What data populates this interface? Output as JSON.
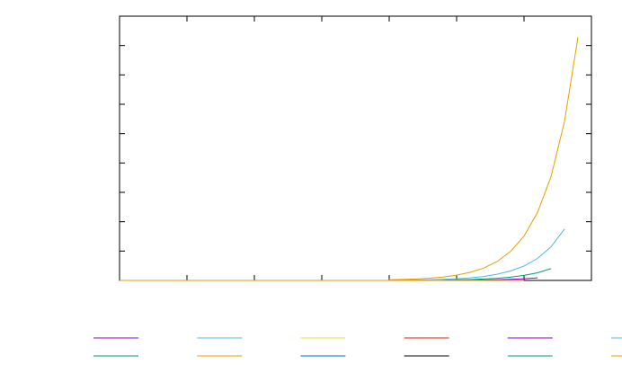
{
  "chart_data": {
    "type": "line",
    "xlim": [
      0,
      7
    ],
    "xticks": [
      0,
      1,
      2,
      3,
      4,
      5,
      6,
      7
    ],
    "ylim": [
      0,
      9
    ],
    "yticks": [
      0,
      1,
      2,
      3,
      4,
      5,
      6,
      7,
      8,
      9
    ],
    "legend_position": "bottom",
    "series": [
      {
        "color": "#9400d3",
        "x": [
          4.8,
          5.0,
          5.2,
          5.4,
          5.6,
          5.8,
          6.0,
          6.2
        ],
        "values": [
          0.005,
          0.007,
          0.011,
          0.016,
          0.025,
          0.038,
          0.059,
          0.09
        ]
      },
      {
        "color": "#009e73",
        "x": [
          4.2,
          4.4,
          4.6,
          4.8,
          5.0,
          5.2,
          5.4,
          5.6,
          5.8,
          6.0,
          6.2,
          6.4
        ],
        "values": [
          0.004,
          0.006,
          0.009,
          0.013,
          0.02,
          0.031,
          0.048,
          0.073,
          0.11,
          0.17,
          0.26,
          0.4
        ]
      },
      {
        "color": "#56b4e9",
        "x": [
          4.0,
          4.2,
          4.4,
          4.6,
          4.8,
          5.0,
          5.2,
          5.4,
          5.6,
          5.8,
          6.0,
          6.2,
          6.4,
          6.6
        ],
        "values": [
          0.007,
          0.01,
          0.016,
          0.025,
          0.038,
          0.058,
          0.089,
          0.136,
          0.21,
          0.32,
          0.49,
          0.75,
          1.14,
          1.75
        ]
      },
      {
        "color": "#e69f00",
        "x": [
          4.0,
          4.2,
          4.4,
          4.6,
          4.8,
          5.0,
          5.2,
          5.4,
          5.6,
          5.8,
          6.0,
          6.2,
          6.4,
          6.6,
          6.8
        ],
        "values": [
          0.021,
          0.033,
          0.05,
          0.077,
          0.117,
          0.18,
          0.275,
          0.42,
          0.644,
          0.985,
          1.51,
          2.31,
          3.53,
          5.41,
          8.28
        ]
      },
      {
        "color": "#f0e442",
        "x": [
          0,
          2,
          4,
          6
        ],
        "values": [
          0,
          0,
          0.001,
          0.003
        ]
      },
      {
        "color": "#0072b2",
        "x": [
          0,
          2,
          4,
          6
        ],
        "values": [
          0,
          0,
          0.001,
          0.003
        ]
      },
      {
        "color": "#e51e10",
        "x": [
          0,
          2,
          4,
          6
        ],
        "values": [
          0,
          0,
          0.001,
          0.002
        ]
      },
      {
        "color": "#000000",
        "x": [
          0,
          2,
          4,
          6
        ],
        "values": [
          0,
          0,
          0.001,
          0.002
        ]
      },
      {
        "color": "#9400d3",
        "x": [
          0,
          2,
          4,
          6
        ],
        "values": [
          0,
          0,
          0,
          0.001
        ]
      },
      {
        "color": "#009e73",
        "x": [
          0,
          2,
          4,
          6
        ],
        "values": [
          0,
          0,
          0,
          0.001
        ]
      },
      {
        "color": "#56b4e9",
        "x": [
          0,
          2,
          4,
          6
        ],
        "values": [
          0,
          0,
          0,
          0.001
        ]
      },
      {
        "color": "#e69f00",
        "x": [
          0,
          2,
          4,
          6
        ],
        "values": [
          0,
          0,
          0,
          0.001
        ]
      }
    ]
  }
}
